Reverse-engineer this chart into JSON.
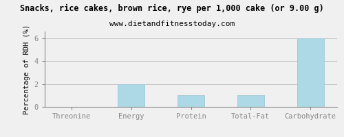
{
  "title": "Snacks, rice cakes, brown rice, rye per 1,000 cake (or 9.00 g)",
  "subtitle": "www.dietandfitnesstoday.com",
  "categories": [
    "Threonine",
    "Energy",
    "Protein",
    "Total-Fat",
    "Carbohydrate"
  ],
  "values": [
    0,
    2,
    1,
    1,
    6
  ],
  "bar_color": "#add8e6",
  "bar_edge_color": "#a0c8d8",
  "ylabel": "Percentage of RDH (%)",
  "ylim": [
    0,
    6.6
  ],
  "yticks": [
    0,
    2,
    4,
    6
  ],
  "background_color": "#f0f0f0",
  "plot_background": "#f0f0f0",
  "title_fontsize": 8.5,
  "subtitle_fontsize": 8,
  "ylabel_fontsize": 7.5,
  "tick_fontsize": 7.5,
  "grid_color": "#bbbbbb",
  "border_color": "#888888"
}
